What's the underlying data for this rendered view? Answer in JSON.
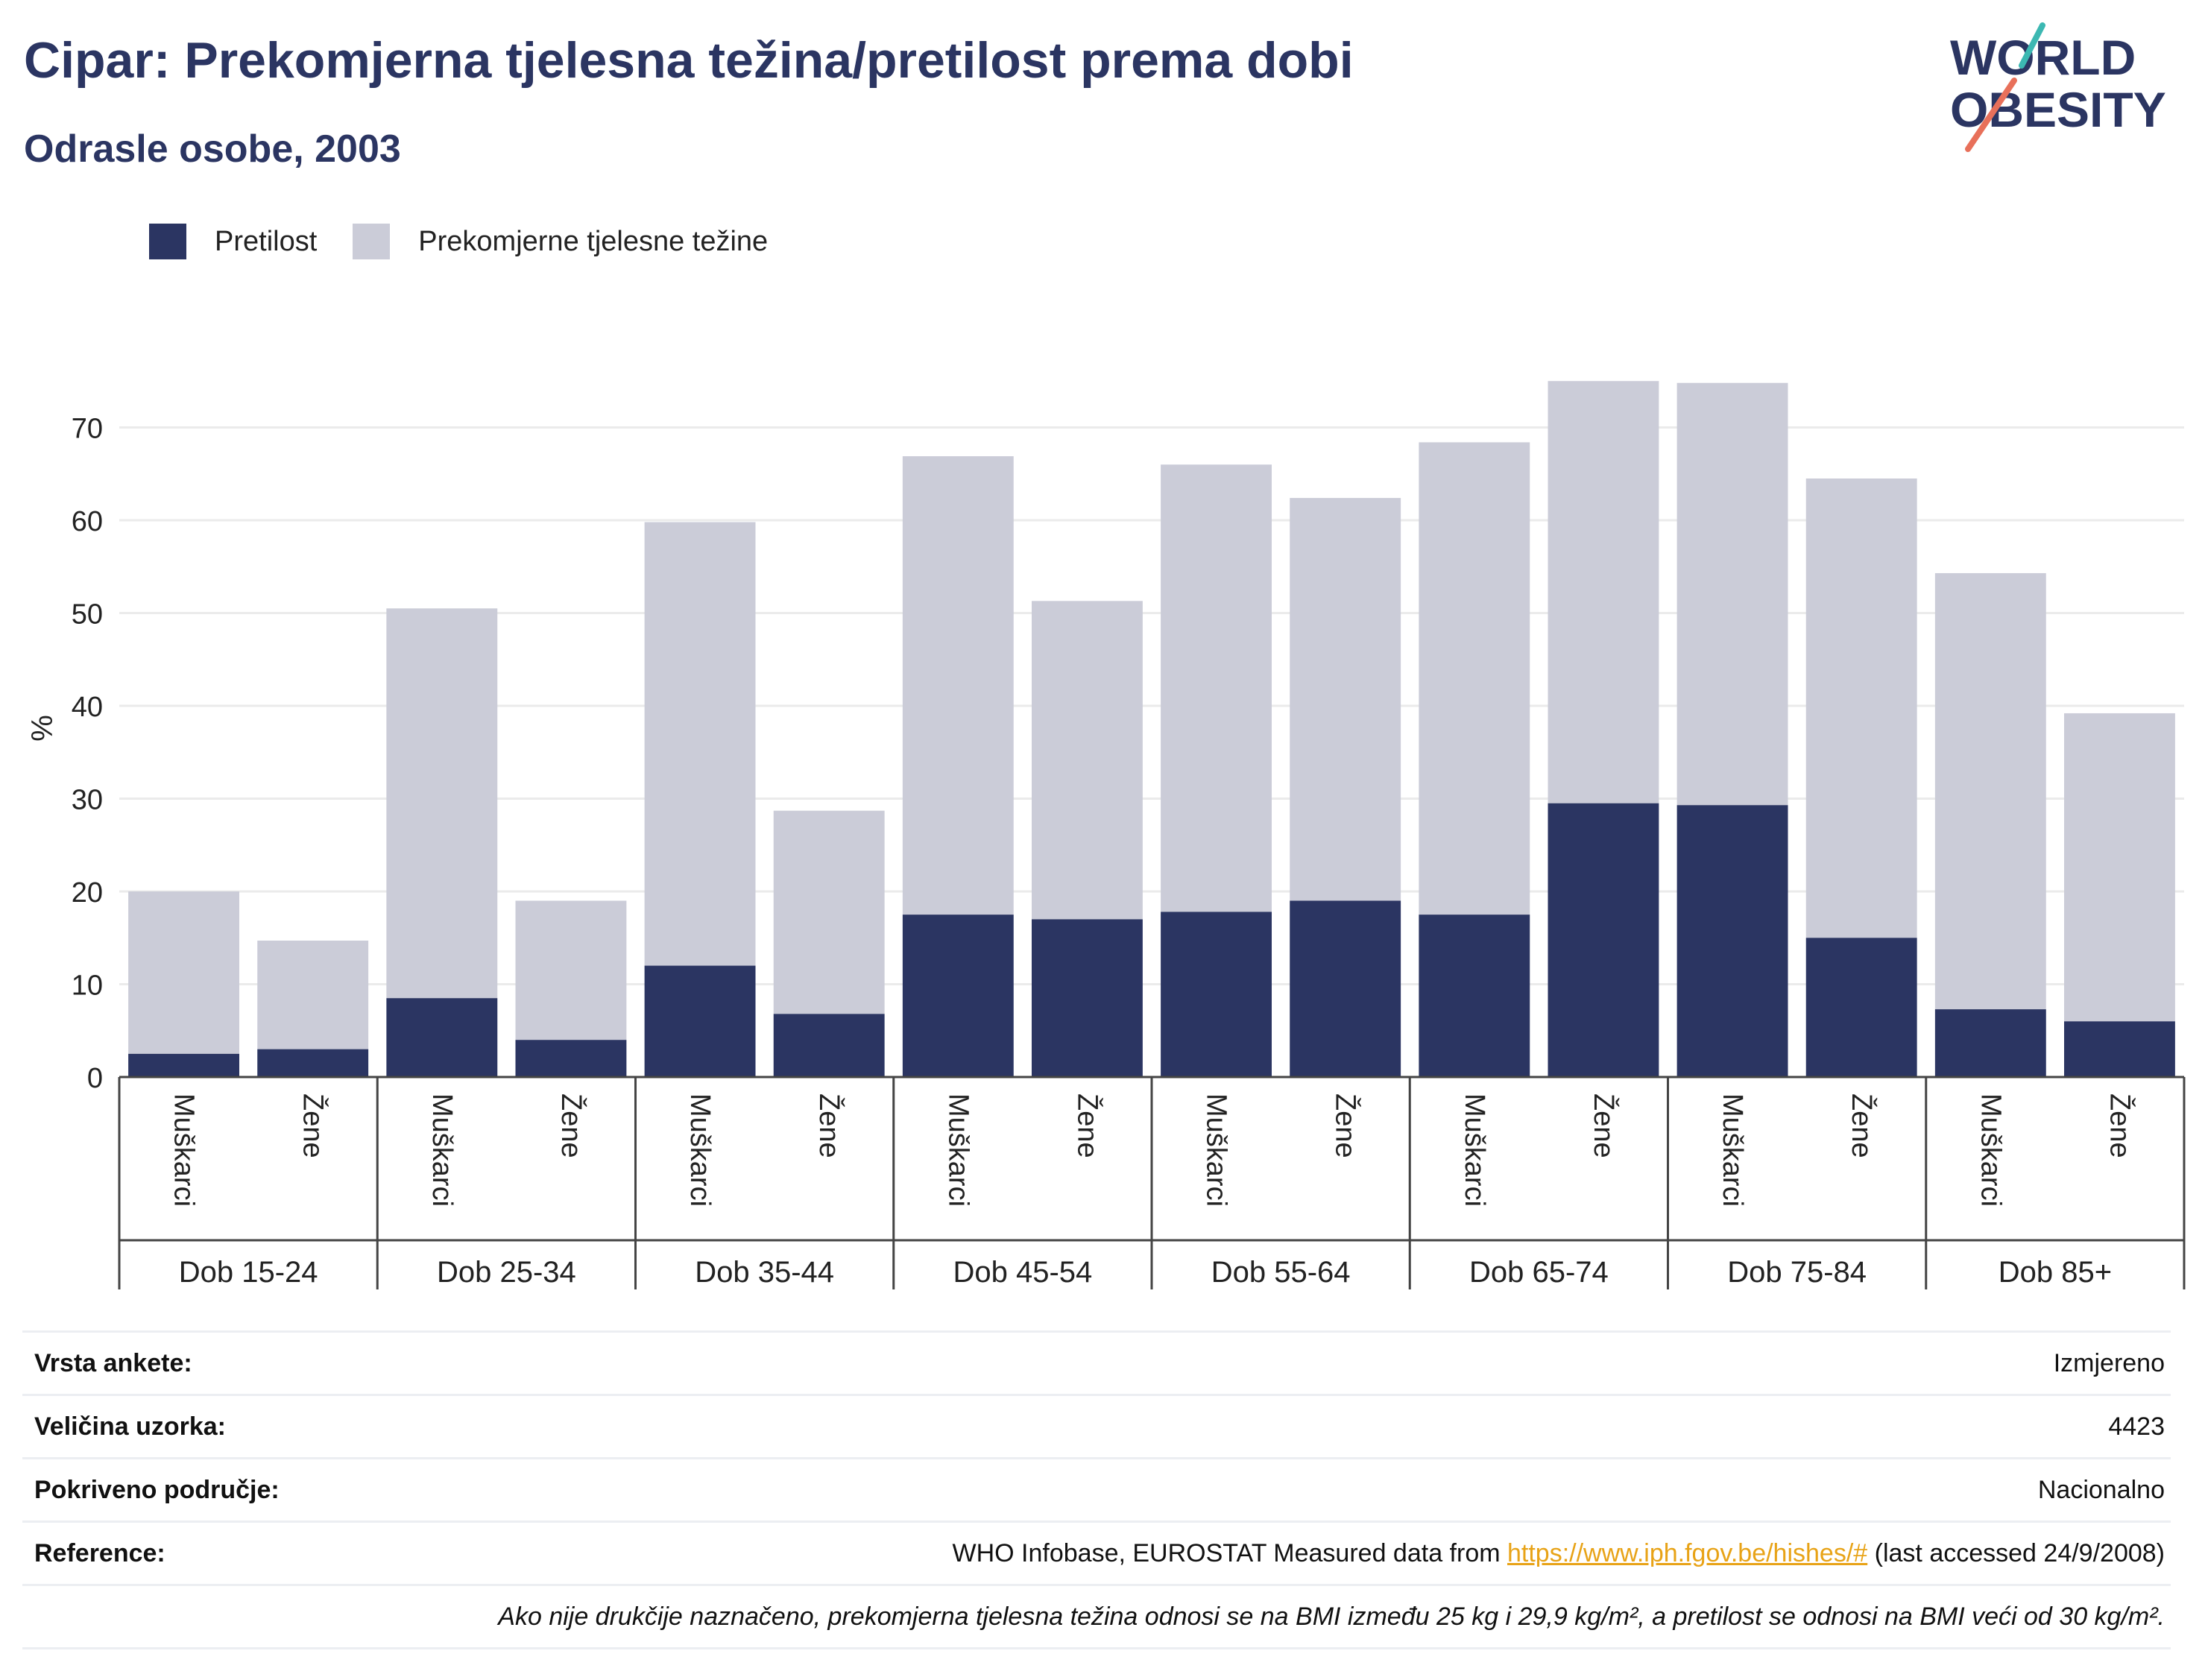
{
  "header": {
    "title": "Cipar: Prekomjerna tjelesna težina/pretilost prema dobi",
    "subtitle": "Odrasle osobe, 2003",
    "logo_line1": "WORLD",
    "logo_line2": "OBESITY"
  },
  "colors": {
    "obesity": "#2b3562",
    "overweight": "#cbccd8",
    "title": "#2b3562",
    "link": "#e8a317",
    "logo_teal": "#3cb8b2",
    "logo_coral": "#e8705a"
  },
  "chart_data": {
    "type": "bar",
    "stacked": true,
    "ylabel": "%",
    "xlabel": "",
    "ylim": [
      0,
      80
    ],
    "yticks": [
      0,
      10,
      20,
      30,
      40,
      50,
      60,
      70
    ],
    "grid": true,
    "legend_position": "top-left",
    "groups": [
      "Dob 15-24",
      "Dob 25-34",
      "Dob 35-44",
      "Dob 45-54",
      "Dob 55-64",
      "Dob 65-74",
      "Dob 75-84",
      "Dob 85+"
    ],
    "subcategories": [
      "Muškarci",
      "Žene"
    ],
    "series": [
      {
        "name": "Pretilost",
        "values": [
          2.5,
          3.0,
          8.5,
          4.0,
          12.0,
          6.8,
          17.5,
          17.0,
          17.8,
          19.0,
          17.5,
          29.5,
          29.3,
          15.0,
          7.3,
          6.0
        ]
      },
      {
        "name": "Prekomjerne tjelesne težine",
        "values": [
          17.5,
          11.7,
          42.0,
          15.0,
          47.8,
          21.9,
          49.4,
          34.3,
          48.2,
          43.4,
          50.9,
          45.5,
          45.5,
          49.5,
          47.0,
          33.2
        ]
      }
    ]
  },
  "meta": {
    "rows": [
      {
        "key": "Vrsta ankete:",
        "value": "Izmjereno"
      },
      {
        "key": "Veličina uzorka:",
        "value": "4423"
      },
      {
        "key": "Pokriveno područje:",
        "value": "Nacionalno"
      }
    ],
    "reference_key": "Reference:",
    "reference_prefix": "WHO Infobase, EUROSTAT Measured data from ",
    "reference_link": "https://www.iph.fgov.be/hishes/#",
    "reference_suffix": " (last accessed 24/9/2008)",
    "note": "Ako nije drukčije naznačeno, prekomjerna tjelesna težina odnosi se na BMI između 25 kg i 29,9 kg/m², a pretilost se odnosi na BMI veći od 30 kg/m²."
  }
}
